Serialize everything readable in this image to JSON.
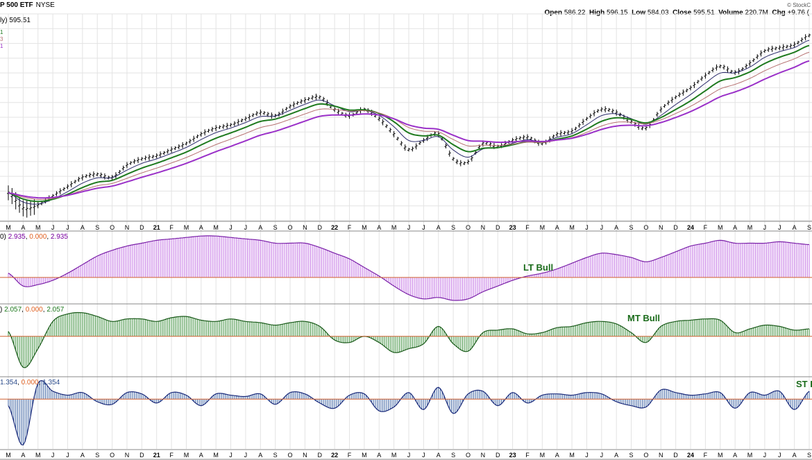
{
  "header": {
    "title": "P 500 ETF",
    "exchange": "NYSE",
    "credit": "© StockC",
    "open_label": "Open",
    "open": "586.22",
    "high_label": "High",
    "high": "596.15",
    "low_label": "Low",
    "low": "584.03",
    "close_label": "Close",
    "close": "595.51",
    "volume_label": "Volume",
    "volume": "220.7M",
    "chg_label": "Chg",
    "chg": "+9.76 ("
  },
  "price_label": "ly) 595.51",
  "ma_legend": [
    "1",
    "3",
    "1"
  ],
  "colors": {
    "price": "#000000",
    "ma_fast": "#2b2b6b",
    "ma_mid": "#1f7a1f",
    "ma_slow_thin": "#b57070",
    "ma_slow": "#9a30c8",
    "lt_fill": "#cc88e8",
    "mt_fill": "#5aa05a",
    "st_fill": "#5a7ab0",
    "zero_line": "#d06030",
    "grid": "#e3e3e3"
  },
  "panels": [
    {
      "name": "lt",
      "label_prefix": "0)",
      "v1": "2.935",
      "v2": "0.000",
      "v3": "2.935",
      "annotation": "LT Bull"
    },
    {
      "name": "mt",
      "label_prefix": ")",
      "v1": "2.057",
      "v2": "0.000",
      "v3": "2.057",
      "annotation": "MT Bull"
    },
    {
      "name": "st",
      "label_prefix": "",
      "v1": "1.354",
      "v2": "0.000",
      "v3": "1.354",
      "annotation": "ST I"
    }
  ],
  "axis_ticks": [
    "M",
    "A",
    "M",
    "J",
    "J",
    "A",
    "S",
    "O",
    "N",
    "D",
    "21",
    "F",
    "M",
    "A",
    "M",
    "J",
    "J",
    "A",
    "S",
    "O",
    "N",
    "D",
    "22",
    "F",
    "M",
    "A",
    "M",
    "J",
    "J",
    "A",
    "S",
    "O",
    "N",
    "D",
    "23",
    "F",
    "M",
    "A",
    "M",
    "J",
    "J",
    "A",
    "S",
    "O",
    "N",
    "D",
    "24",
    "F",
    "M",
    "A",
    "M",
    "J",
    "J",
    "A",
    "S"
  ],
  "year_ticks": [
    "21",
    "22",
    "23",
    "24"
  ],
  "chart_data": {
    "type": "line",
    "title": "P 500 ETF",
    "x": [
      "2020-03",
      "2020-04",
      "2020-05",
      "2020-06",
      "2020-07",
      "2020-08",
      "2020-09",
      "2020-10",
      "2020-11",
      "2020-12",
      "2021-01",
      "2021-02",
      "2021-03",
      "2021-04",
      "2021-05",
      "2021-06",
      "2021-07",
      "2021-08",
      "2021-09",
      "2021-10",
      "2021-11",
      "2021-12",
      "2022-01",
      "2022-02",
      "2022-03",
      "2022-04",
      "2022-05",
      "2022-06",
      "2022-07",
      "2022-08",
      "2022-09",
      "2022-10",
      "2022-11",
      "2022-12",
      "2023-01",
      "2023-02",
      "2023-03",
      "2023-04",
      "2023-05",
      "2023-06",
      "2023-07",
      "2023-08",
      "2023-09",
      "2023-10",
      "2023-11",
      "2023-12",
      "2024-01",
      "2024-02",
      "2024-03",
      "2024-04",
      "2024-05",
      "2024-06",
      "2024-07",
      "2024-08",
      "2024-09"
    ],
    "series": [
      {
        "key": "price",
        "values": [
          315,
          290,
          295,
          310,
          325,
          340,
          345,
          340,
          360,
          370,
          375,
          385,
          395,
          410,
          420,
          425,
          435,
          445,
          440,
          455,
          465,
          470,
          450,
          440,
          450,
          435,
          410,
          385,
          400,
          410,
          370,
          365,
          395,
          390,
          400,
          405,
          395,
          410,
          415,
          435,
          450,
          445,
          430,
          420,
          450,
          470,
          485,
          505,
          520,
          510,
          525,
          545,
          550,
          555,
          570
        ]
      },
      {
        "key": "lt",
        "values": [
          0.3,
          -0.6,
          -0.5,
          -0.2,
          0.3,
          0.9,
          1.5,
          1.9,
          2.2,
          2.4,
          2.6,
          2.7,
          2.8,
          2.9,
          2.9,
          2.8,
          2.7,
          2.6,
          2.4,
          2.4,
          2.4,
          2.1,
          1.7,
          1.3,
          0.7,
          0.1,
          -0.6,
          -1.2,
          -1.5,
          -1.4,
          -1.6,
          -1.5,
          -1.0,
          -0.6,
          -0.2,
          0.1,
          0.3,
          0.6,
          1.0,
          1.4,
          1.7,
          1.6,
          1.4,
          1.1,
          1.4,
          1.8,
          2.2,
          2.4,
          2.6,
          2.4,
          2.4,
          2.4,
          2.5,
          2.4,
          2.3
        ]
      },
      {
        "key": "mt",
        "values": [
          0.4,
          -2.5,
          -1.0,
          1.2,
          1.8,
          1.9,
          1.6,
          1.2,
          1.4,
          1.4,
          1.2,
          1.5,
          1.6,
          1.3,
          1.2,
          1.4,
          1.2,
          1.1,
          0.9,
          1.1,
          1.2,
          0.8,
          -0.3,
          -0.5,
          0.0,
          -0.5,
          -1.3,
          -1.0,
          -0.6,
          0.8,
          -0.6,
          -1.2,
          0.3,
          0.5,
          0.6,
          0.2,
          0.3,
          0.7,
          0.8,
          1.1,
          1.2,
          1.0,
          0.3,
          -0.5,
          0.8,
          1.2,
          1.3,
          1.4,
          1.3,
          0.3,
          0.6,
          0.9,
          0.8,
          0.5,
          0.6
        ]
      },
      {
        "key": "st",
        "values": [
          -0.5,
          -3.5,
          1.2,
          0.6,
          0.3,
          0.5,
          -0.2,
          -0.4,
          0.5,
          0.4,
          -0.3,
          0.5,
          0.3,
          -0.5,
          0.4,
          0.3,
          0.2,
          0.4,
          -0.4,
          0.5,
          0.4,
          -0.3,
          -0.7,
          0.3,
          0.4,
          -0.9,
          -0.6,
          0.5,
          -0.8,
          0.9,
          -1.1,
          0.4,
          0.6,
          -0.5,
          0.5,
          -0.3,
          0.3,
          0.4,
          0.3,
          0.5,
          0.4,
          -0.2,
          -0.5,
          -0.6,
          0.7,
          0.5,
          0.3,
          0.4,
          0.5,
          -0.7,
          0.5,
          0.3,
          0.6,
          -0.8,
          0.6
        ]
      }
    ],
    "price_ylim": [
      270,
      605
    ],
    "lt_ylim": [
      -1.8,
      3.2
    ],
    "mt_ylim": [
      -3.2,
      2.5
    ],
    "st_ylim": [
      -3.8,
      1.6
    ],
    "grid": true
  }
}
